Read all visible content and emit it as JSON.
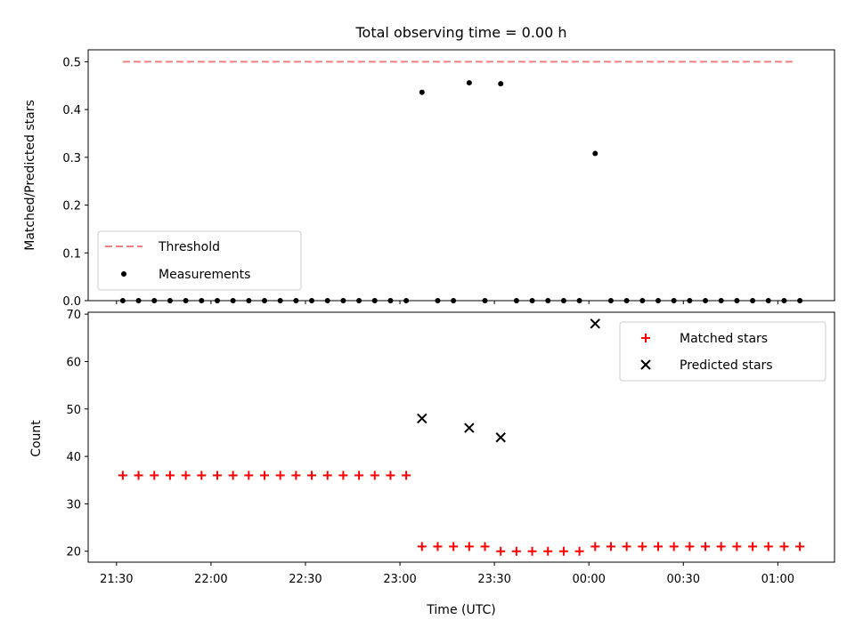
{
  "chart_data": [
    {
      "type": "scatter",
      "title": "Total observing time = 0.00 h",
      "ylabel": "Matched/Predicted stars",
      "xlabel": "",
      "ylim": [
        0,
        0.525
      ],
      "yticks": [
        "0.0",
        "0.1",
        "0.2",
        "0.3",
        "0.4",
        "0.5"
      ],
      "grid": false,
      "legend": "lower-left",
      "threshold": {
        "name": "Threshold",
        "value": 0.5,
        "x_start": "21:32",
        "x_end": "01:05",
        "color": "#f08080",
        "style": "dashed"
      },
      "series": [
        {
          "name": "Measurements",
          "color": "#000000",
          "points": [
            [
              "21:32",
              0
            ],
            [
              "21:37",
              0
            ],
            [
              "21:42",
              0
            ],
            [
              "21:47",
              0
            ],
            [
              "21:52",
              0
            ],
            [
              "21:57",
              0
            ],
            [
              "22:02",
              0
            ],
            [
              "22:07",
              0
            ],
            [
              "22:12",
              0
            ],
            [
              "22:17",
              0
            ],
            [
              "22:22",
              0
            ],
            [
              "22:27",
              0
            ],
            [
              "22:32",
              0
            ],
            [
              "22:37",
              0
            ],
            [
              "22:42",
              0
            ],
            [
              "22:47",
              0
            ],
            [
              "22:52",
              0
            ],
            [
              "22:57",
              0
            ],
            [
              "23:02",
              0
            ],
            [
              "23:07",
              0.436
            ],
            [
              "23:12",
              0
            ],
            [
              "23:17",
              0
            ],
            [
              "23:22",
              0.456
            ],
            [
              "23:27",
              0
            ],
            [
              "23:32",
              0.454
            ],
            [
              "23:37",
              0
            ],
            [
              "23:42",
              0
            ],
            [
              "23:47",
              0
            ],
            [
              "23:52",
              0
            ],
            [
              "23:57",
              0
            ],
            [
              "00:02",
              0.308
            ],
            [
              "00:07",
              0
            ],
            [
              "00:12",
              0
            ],
            [
              "00:17",
              0
            ],
            [
              "00:22",
              0
            ],
            [
              "00:27",
              0
            ],
            [
              "00:32",
              0
            ],
            [
              "00:37",
              0
            ],
            [
              "00:42",
              0
            ],
            [
              "00:47",
              0
            ],
            [
              "00:52",
              0
            ],
            [
              "00:57",
              0
            ],
            [
              "01:02",
              0
            ],
            [
              "01:07",
              0
            ]
          ]
        }
      ]
    },
    {
      "type": "scatter",
      "title": "",
      "ylabel": "Count",
      "xlabel": "Time (UTC)",
      "ylim": [
        17.7,
        70.4
      ],
      "yticks": [
        "20",
        "30",
        "40",
        "50",
        "60",
        "70"
      ],
      "xticks": [
        "21:30",
        "22:00",
        "22:30",
        "23:00",
        "23:30",
        "00:00",
        "00:30",
        "01:00"
      ],
      "xlim": [
        "21:21",
        "01:18"
      ],
      "grid": false,
      "legend": "upper-right",
      "series": [
        {
          "name": "Matched stars",
          "marker": "plus",
          "color": "#ff0000",
          "points": [
            [
              "21:32",
              36
            ],
            [
              "21:37",
              36
            ],
            [
              "21:42",
              36
            ],
            [
              "21:47",
              36
            ],
            [
              "21:52",
              36
            ],
            [
              "21:57",
              36
            ],
            [
              "22:02",
              36
            ],
            [
              "22:07",
              36
            ],
            [
              "22:12",
              36
            ],
            [
              "22:17",
              36
            ],
            [
              "22:22",
              36
            ],
            [
              "22:27",
              36
            ],
            [
              "22:32",
              36
            ],
            [
              "22:37",
              36
            ],
            [
              "22:42",
              36
            ],
            [
              "22:47",
              36
            ],
            [
              "22:52",
              36
            ],
            [
              "22:57",
              36
            ],
            [
              "23:02",
              36
            ],
            [
              "23:07",
              21
            ],
            [
              "23:12",
              21
            ],
            [
              "23:17",
              21
            ],
            [
              "23:22",
              21
            ],
            [
              "23:27",
              21
            ],
            [
              "23:32",
              20
            ],
            [
              "23:37",
              20
            ],
            [
              "23:42",
              20
            ],
            [
              "23:47",
              20
            ],
            [
              "23:52",
              20
            ],
            [
              "23:57",
              20
            ],
            [
              "00:02",
              21
            ],
            [
              "00:07",
              21
            ],
            [
              "00:12",
              21
            ],
            [
              "00:17",
              21
            ],
            [
              "00:22",
              21
            ],
            [
              "00:27",
              21
            ],
            [
              "00:32",
              21
            ],
            [
              "00:37",
              21
            ],
            [
              "00:42",
              21
            ],
            [
              "00:47",
              21
            ],
            [
              "00:52",
              21
            ],
            [
              "00:57",
              21
            ],
            [
              "01:02",
              21
            ],
            [
              "01:07",
              21
            ]
          ]
        },
        {
          "name": "Predicted stars",
          "marker": "x",
          "color": "#000000",
          "points": [
            [
              "23:07",
              48
            ],
            [
              "23:22",
              46
            ],
            [
              "23:32",
              44
            ],
            [
              "00:02",
              68
            ]
          ]
        }
      ]
    }
  ]
}
